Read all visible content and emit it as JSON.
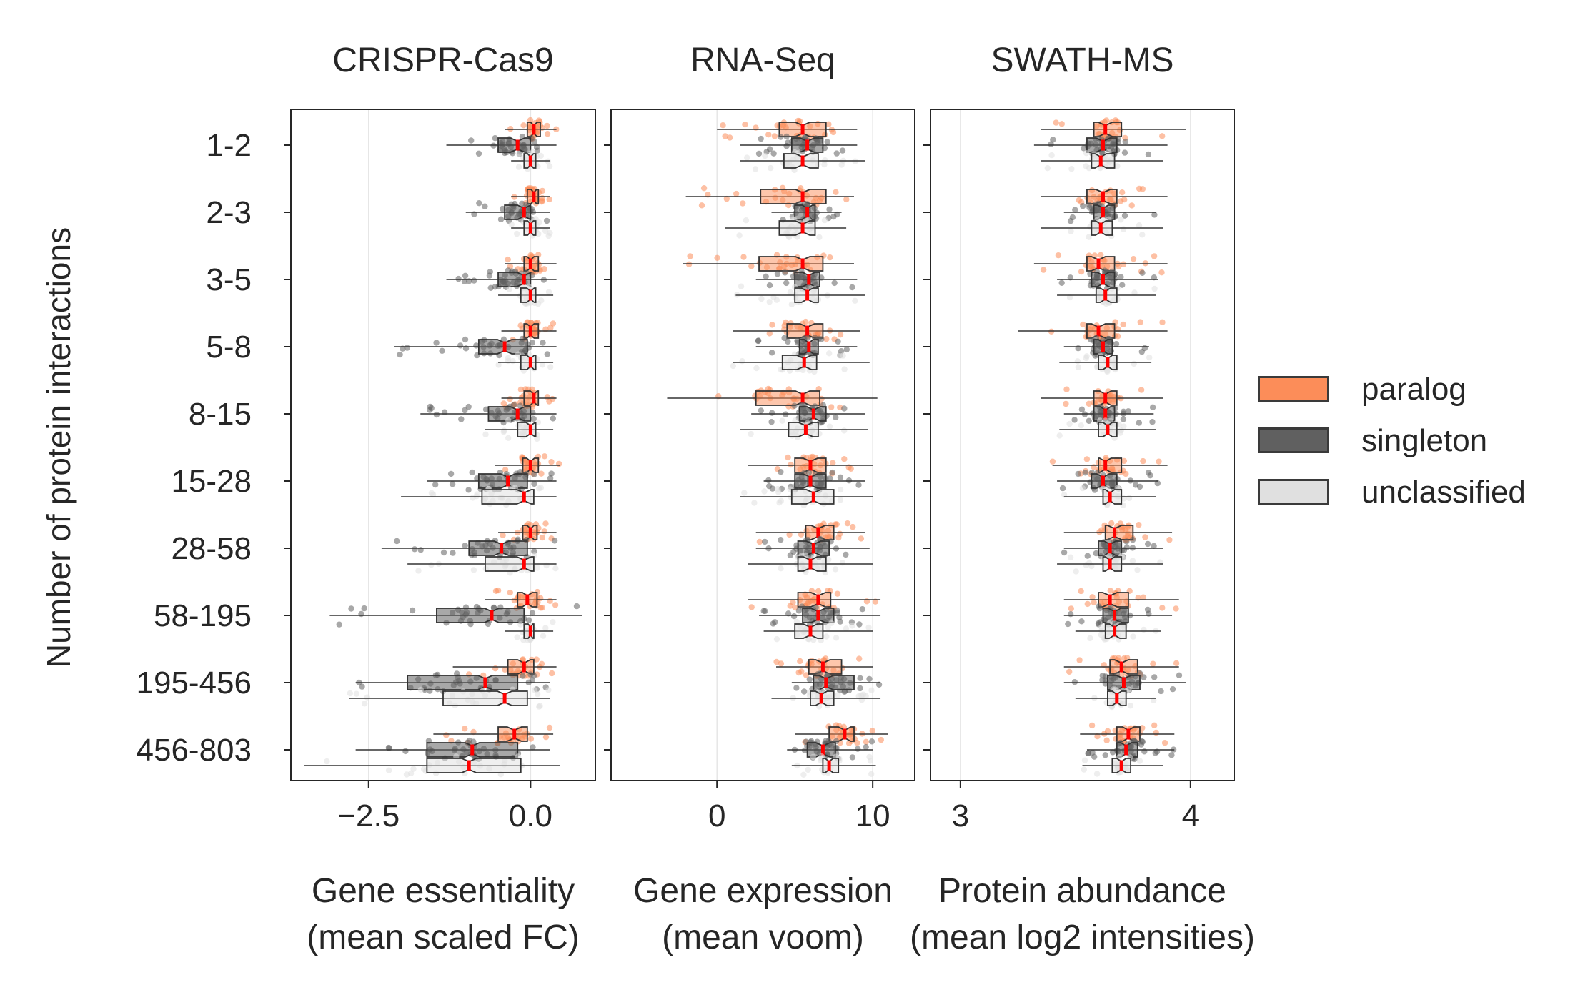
{
  "chart_data": {
    "type": "box",
    "y_axis_label": "Number of protein interactions",
    "categories": [
      "1-2",
      "2-3",
      "3-5",
      "5-8",
      "8-15",
      "15-28",
      "28-58",
      "58-195",
      "195-456",
      "456-803"
    ],
    "groups": [
      "paralog",
      "singleton",
      "unclassified"
    ],
    "colors": {
      "paralog": "#fc8d59",
      "singleton": "#606060",
      "unclassified": "#e0e0e0",
      "median": "#ff0000"
    },
    "legend": {
      "position": "right",
      "items": [
        {
          "name": "paralog",
          "color": "#fc8d59"
        },
        {
          "name": "singleton",
          "color": "#606060"
        },
        {
          "name": "unclassified",
          "color": "#e0e0e0"
        }
      ]
    },
    "panels": [
      {
        "title": "CRISPR-Cas9",
        "xlabel_line1": "Gene essentiality",
        "xlabel_line2": "(mean scaled FC)",
        "xlim": [
          -3.7,
          1.0
        ],
        "xticks": [
          -2.5,
          0.0
        ],
        "xtick_labels": [
          "−2.5",
          "0.0"
        ],
        "boxes": {
          "paralog": [
            {
              "q1": -0.05,
              "med": 0.05,
              "q3": 0.15,
              "lo": -0.4,
              "hi": 0.4
            },
            {
              "q1": -0.05,
              "med": 0.05,
              "q3": 0.12,
              "lo": -0.3,
              "hi": 0.3
            },
            {
              "q1": -0.1,
              "med": 0.0,
              "q3": 0.12,
              "lo": -0.4,
              "hi": 0.4
            },
            {
              "q1": -0.1,
              "med": 0.0,
              "q3": 0.12,
              "lo": -0.45,
              "hi": 0.4
            },
            {
              "q1": -0.1,
              "med": 0.05,
              "q3": 0.12,
              "lo": -0.45,
              "hi": 0.4
            },
            {
              "q1": -0.12,
              "med": 0.0,
              "q3": 0.12,
              "lo": -0.55,
              "hi": 0.45
            },
            {
              "q1": -0.12,
              "med": 0.0,
              "q3": 0.1,
              "lo": -0.5,
              "hi": 0.4
            },
            {
              "q1": -0.2,
              "med": -0.05,
              "q3": 0.1,
              "lo": -0.7,
              "hi": 0.4
            },
            {
              "q1": -0.35,
              "med": -0.1,
              "q3": 0.05,
              "lo": -1.2,
              "hi": 0.4
            },
            {
              "q1": -0.5,
              "med": -0.25,
              "q3": -0.05,
              "lo": -1.5,
              "hi": 0.35
            }
          ],
          "singleton": [
            {
              "q1": -0.5,
              "med": -0.2,
              "q3": 0.0,
              "lo": -1.3,
              "hi": 0.4
            },
            {
              "q1": -0.4,
              "med": -0.1,
              "q3": 0.0,
              "lo": -1.0,
              "hi": 0.3
            },
            {
              "q1": -0.5,
              "med": -0.1,
              "q3": 0.0,
              "lo": -1.3,
              "hi": 0.4
            },
            {
              "q1": -0.8,
              "med": -0.4,
              "q3": -0.05,
              "lo": -2.1,
              "hi": 0.4
            },
            {
              "q1": -0.65,
              "med": -0.2,
              "q3": 0.0,
              "lo": -1.7,
              "hi": 0.4
            },
            {
              "q1": -0.8,
              "med": -0.35,
              "q3": -0.05,
              "lo": -1.6,
              "hi": 0.4
            },
            {
              "q1": -0.95,
              "med": -0.45,
              "q3": -0.05,
              "lo": -2.3,
              "hi": 0.4
            },
            {
              "q1": -1.45,
              "med": -0.6,
              "q3": -0.1,
              "lo": -3.1,
              "hi": 0.8
            },
            {
              "q1": -1.9,
              "med": -0.7,
              "q3": -0.2,
              "lo": -2.7,
              "hi": 0.3
            },
            {
              "q1": -1.6,
              "med": -0.9,
              "q3": -0.2,
              "lo": -2.7,
              "hi": 0.3
            }
          ],
          "unclassified": [
            {
              "q1": -0.1,
              "med": 0.0,
              "q3": 0.08,
              "lo": -0.3,
              "hi": 0.3
            },
            {
              "q1": -0.1,
              "med": 0.0,
              "q3": 0.08,
              "lo": -0.3,
              "hi": 0.3
            },
            {
              "q1": -0.15,
              "med": 0.0,
              "q3": 0.08,
              "lo": -0.5,
              "hi": 0.35
            },
            {
              "q1": -0.15,
              "med": 0.0,
              "q3": 0.08,
              "lo": -0.5,
              "hi": 0.35
            },
            {
              "q1": -0.2,
              "med": 0.0,
              "q3": 0.08,
              "lo": -0.7,
              "hi": 0.35
            },
            {
              "q1": -0.75,
              "med": -0.1,
              "q3": 0.05,
              "lo": -2.0,
              "hi": 0.4
            },
            {
              "q1": -0.7,
              "med": -0.1,
              "q3": 0.05,
              "lo": -1.9,
              "hi": 0.4
            },
            {
              "q1": -0.1,
              "med": 0.0,
              "q3": 0.05,
              "lo": -0.4,
              "hi": 0.35
            },
            {
              "q1": -1.35,
              "med": -0.4,
              "q3": -0.05,
              "lo": -2.8,
              "hi": 0.3
            },
            {
              "q1": -1.6,
              "med": -0.95,
              "q3": -0.15,
              "lo": -3.5,
              "hi": 0.45
            }
          ]
        }
      },
      {
        "title": "RNA-Seq",
        "xlabel_line1": "Gene expression",
        "xlabel_line2": "(mean voom)",
        "xlim": [
          -6.8,
          12.7
        ],
        "xticks": [
          0,
          10
        ],
        "xtick_labels": [
          "0",
          "10"
        ],
        "boxes": {
          "paralog": [
            {
              "q1": 4.0,
              "med": 5.5,
              "q3": 7.0,
              "lo": 0.0,
              "hi": 9.0
            },
            {
              "q1": 2.8,
              "med": 5.5,
              "q3": 7.0,
              "lo": -2.0,
              "hi": 8.8
            },
            {
              "q1": 2.7,
              "med": 5.5,
              "q3": 6.8,
              "lo": -2.2,
              "hi": 8.8
            },
            {
              "q1": 4.5,
              "med": 5.8,
              "q3": 6.8,
              "lo": 1.0,
              "hi": 9.2
            },
            {
              "q1": 2.5,
              "med": 5.5,
              "q3": 6.6,
              "lo": -3.2,
              "hi": 10.3
            },
            {
              "q1": 5.0,
              "med": 6.0,
              "q3": 7.0,
              "lo": 2.0,
              "hi": 10.0
            },
            {
              "q1": 5.7,
              "med": 6.5,
              "q3": 7.5,
              "lo": 2.5,
              "hi": 9.5
            },
            {
              "q1": 5.2,
              "med": 6.5,
              "q3": 7.3,
              "lo": 2.0,
              "hi": 10.5
            },
            {
              "q1": 5.9,
              "med": 6.8,
              "q3": 8.0,
              "lo": 3.8,
              "hi": 10.0
            },
            {
              "q1": 7.2,
              "med": 8.2,
              "q3": 8.8,
              "lo": 5.0,
              "hi": 11.0
            }
          ],
          "singleton": [
            {
              "q1": 4.8,
              "med": 5.8,
              "q3": 6.8,
              "lo": 1.5,
              "hi": 9.0
            },
            {
              "q1": 5.0,
              "med": 5.8,
              "q3": 6.3,
              "lo": 3.5,
              "hi": 8.0
            },
            {
              "q1": 5.0,
              "med": 5.9,
              "q3": 6.6,
              "lo": 2.5,
              "hi": 9.0
            },
            {
              "q1": 5.3,
              "med": 5.9,
              "q3": 6.5,
              "lo": 2.5,
              "hi": 9.0
            },
            {
              "q1": 5.3,
              "med": 6.2,
              "q3": 7.0,
              "lo": 2.2,
              "hi": 9.5
            },
            {
              "q1": 5.0,
              "med": 6.0,
              "q3": 7.0,
              "lo": 3.0,
              "hi": 9.5
            },
            {
              "q1": 5.2,
              "med": 6.2,
              "q3": 7.2,
              "lo": 2.5,
              "hi": 9.8
            },
            {
              "q1": 5.5,
              "med": 6.5,
              "q3": 7.5,
              "lo": 2.7,
              "hi": 10.5
            },
            {
              "q1": 6.2,
              "med": 7.0,
              "q3": 8.8,
              "lo": 4.8,
              "hi": 10.5
            },
            {
              "q1": 5.8,
              "med": 6.8,
              "q3": 7.6,
              "lo": 4.5,
              "hi": 10.0
            }
          ],
          "unclassified": [
            {
              "q1": 4.3,
              "med": 5.5,
              "q3": 6.5,
              "lo": 1.5,
              "hi": 9.5
            },
            {
              "q1": 4.0,
              "med": 5.5,
              "q3": 6.3,
              "lo": 0.5,
              "hi": 8.3
            },
            {
              "q1": 5.0,
              "med": 5.8,
              "q3": 6.5,
              "lo": 1.2,
              "hi": 9.5
            },
            {
              "q1": 4.2,
              "med": 5.6,
              "q3": 6.4,
              "lo": 1.0,
              "hi": 9.8
            },
            {
              "q1": 4.6,
              "med": 5.7,
              "q3": 6.5,
              "lo": 1.5,
              "hi": 9.7
            },
            {
              "q1": 4.8,
              "med": 6.2,
              "q3": 7.5,
              "lo": 1.5,
              "hi": 10.0
            },
            {
              "q1": 5.2,
              "med": 6.0,
              "q3": 7.0,
              "lo": 2.0,
              "hi": 10.0
            },
            {
              "q1": 5.0,
              "med": 6.0,
              "q3": 6.8,
              "lo": 3.0,
              "hi": 10.0
            },
            {
              "q1": 6.0,
              "med": 6.7,
              "q3": 7.5,
              "lo": 3.5,
              "hi": 10.5
            },
            {
              "q1": 6.8,
              "med": 7.2,
              "q3": 7.8,
              "lo": 4.8,
              "hi": 10.2
            }
          ]
        }
      },
      {
        "title": "SWATH-MS",
        "xlabel_line1": "Protein abundance",
        "xlabel_line2": "(mean log2 intensities)",
        "xlim": [
          2.87,
          4.19
        ],
        "xticks": [
          3,
          4
        ],
        "xtick_labels": [
          "3",
          "4"
        ],
        "boxes": {
          "paralog": [
            {
              "q1": 3.58,
              "med": 3.63,
              "q3": 3.7,
              "lo": 3.35,
              "hi": 3.98
            },
            {
              "q1": 3.55,
              "med": 3.62,
              "q3": 3.68,
              "lo": 3.35,
              "hi": 3.9
            },
            {
              "q1": 3.55,
              "med": 3.6,
              "q3": 3.67,
              "lo": 3.32,
              "hi": 3.9
            },
            {
              "q1": 3.55,
              "med": 3.6,
              "q3": 3.67,
              "lo": 3.25,
              "hi": 3.9
            },
            {
              "q1": 3.58,
              "med": 3.63,
              "q3": 3.68,
              "lo": 3.35,
              "hi": 3.88
            },
            {
              "q1": 3.6,
              "med": 3.63,
              "q3": 3.7,
              "lo": 3.4,
              "hi": 3.9
            },
            {
              "q1": 3.63,
              "med": 3.67,
              "q3": 3.75,
              "lo": 3.45,
              "hi": 3.92
            },
            {
              "q1": 3.6,
              "med": 3.65,
              "q3": 3.73,
              "lo": 3.45,
              "hi": 3.95
            },
            {
              "q1": 3.65,
              "med": 3.7,
              "q3": 3.77,
              "lo": 3.45,
              "hi": 3.95
            },
            {
              "q1": 3.68,
              "med": 3.73,
              "q3": 3.78,
              "lo": 3.52,
              "hi": 3.93
            }
          ],
          "singleton": [
            {
              "q1": 3.55,
              "med": 3.62,
              "q3": 3.68,
              "lo": 3.32,
              "hi": 3.9
            },
            {
              "q1": 3.58,
              "med": 3.62,
              "q3": 3.67,
              "lo": 3.45,
              "hi": 3.85
            },
            {
              "q1": 3.57,
              "med": 3.62,
              "q3": 3.67,
              "lo": 3.42,
              "hi": 3.86
            },
            {
              "q1": 3.58,
              "med": 3.62,
              "q3": 3.66,
              "lo": 3.45,
              "hi": 3.82
            },
            {
              "q1": 3.58,
              "med": 3.63,
              "q3": 3.67,
              "lo": 3.45,
              "hi": 3.84
            },
            {
              "q1": 3.57,
              "med": 3.62,
              "q3": 3.68,
              "lo": 3.42,
              "hi": 3.86
            },
            {
              "q1": 3.6,
              "med": 3.65,
              "q3": 3.7,
              "lo": 3.45,
              "hi": 3.88
            },
            {
              "q1": 3.62,
              "med": 3.67,
              "q3": 3.73,
              "lo": 3.45,
              "hi": 3.92
            },
            {
              "q1": 3.64,
              "med": 3.71,
              "q3": 3.78,
              "lo": 3.45,
              "hi": 3.98
            },
            {
              "q1": 3.68,
              "med": 3.72,
              "q3": 3.77,
              "lo": 3.55,
              "hi": 3.93
            }
          ],
          "unclassified": [
            {
              "q1": 3.57,
              "med": 3.61,
              "q3": 3.67,
              "lo": 3.35,
              "hi": 3.88
            },
            {
              "q1": 3.57,
              "med": 3.61,
              "q3": 3.66,
              "lo": 3.35,
              "hi": 3.88
            },
            {
              "q1": 3.59,
              "med": 3.63,
              "q3": 3.68,
              "lo": 3.42,
              "hi": 3.85
            },
            {
              "q1": 3.6,
              "med": 3.64,
              "q3": 3.68,
              "lo": 3.43,
              "hi": 3.83
            },
            {
              "q1": 3.6,
              "med": 3.64,
              "q3": 3.68,
              "lo": 3.43,
              "hi": 3.85
            },
            {
              "q1": 3.62,
              "med": 3.65,
              "q3": 3.7,
              "lo": 3.45,
              "hi": 3.85
            },
            {
              "q1": 3.62,
              "med": 3.65,
              "q3": 3.7,
              "lo": 3.42,
              "hi": 3.88
            },
            {
              "q1": 3.63,
              "med": 3.67,
              "q3": 3.72,
              "lo": 3.5,
              "hi": 3.87
            },
            {
              "q1": 3.64,
              "med": 3.68,
              "q3": 3.72,
              "lo": 3.5,
              "hi": 3.85
            },
            {
              "q1": 3.66,
              "med": 3.7,
              "q3": 3.74,
              "lo": 3.53,
              "hi": 3.88
            }
          ]
        }
      }
    ]
  }
}
